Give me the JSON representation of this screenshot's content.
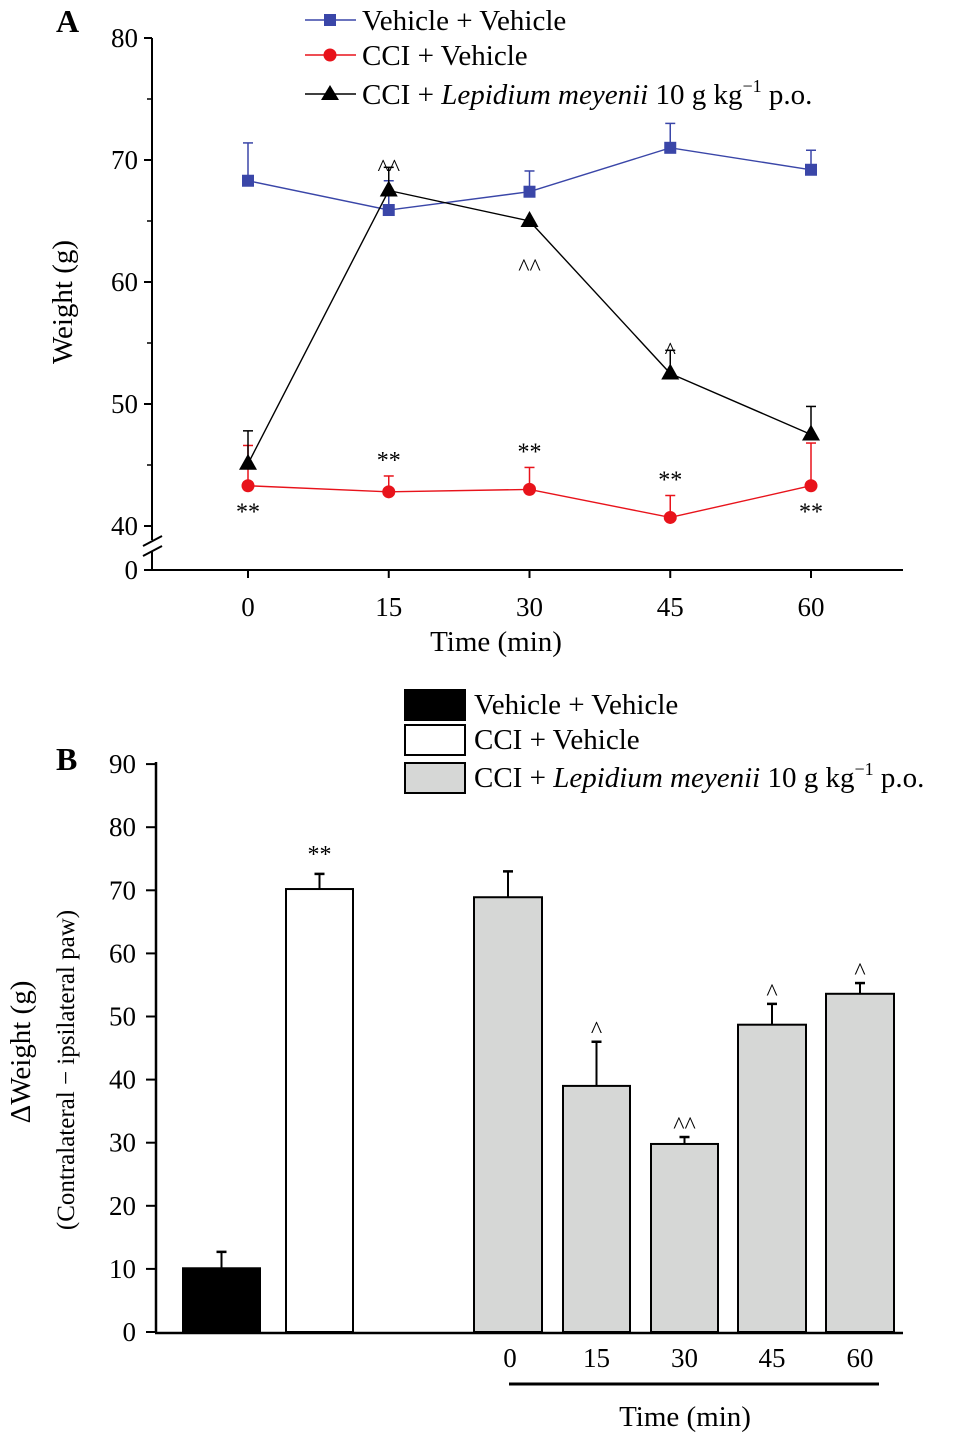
{
  "chart_data": [
    {
      "panel": "A",
      "type": "line",
      "xlabel": "Time (min)",
      "ylabel": "Weight (g)",
      "x": [
        0,
        15,
        30,
        45,
        60
      ],
      "xticks": [
        "0",
        "15",
        "30",
        "45",
        "60"
      ],
      "yticks": [
        "0",
        "40",
        "50",
        "60",
        "70",
        "80"
      ],
      "ylim": [
        40,
        80
      ],
      "y_axis_break": "0 to 40",
      "grid": false,
      "legend_position": "top",
      "series": [
        {
          "name": "Vehicle + Vehicle",
          "marker": "square",
          "color": "#3a46a8",
          "values": [
            68.3,
            65.9,
            67.4,
            71.0,
            69.2
          ],
          "error_upper": [
            71.4,
            68.3,
            69.1,
            73.0,
            70.8
          ]
        },
        {
          "name": "CCI + Vehicle",
          "marker": "circle",
          "color": "#e8131b",
          "values": [
            43.3,
            42.8,
            43.0,
            40.7,
            43.3
          ],
          "error_upper": [
            46.6,
            44.1,
            44.8,
            42.5,
            46.8
          ]
        },
        {
          "name": "CCI + Lepidium meyenii 10 g kg−1 p.o.",
          "marker": "triangle",
          "color": "#000000",
          "name_parts": [
            "CCI + ",
            "Lepidium meyenii",
            " 10 g kg",
            "−1",
            " p.o."
          ],
          "values": [
            45.1,
            67.5,
            65.0,
            52.5,
            47.5
          ],
          "error_upper": [
            47.8,
            69.4,
            null,
            54.4,
            49.8
          ]
        }
      ],
      "annotations": [
        {
          "text": "^^",
          "x": 15,
          "series": 2,
          "side": "above"
        },
        {
          "text": "^^",
          "x": 30,
          "series": 2,
          "side": "below"
        },
        {
          "text": "^",
          "x": 45,
          "series": 2,
          "side": "above"
        },
        {
          "text": "**",
          "x": 0,
          "series": 1,
          "side": "below"
        },
        {
          "text": "**",
          "x": 15,
          "series": 1,
          "side": "above"
        },
        {
          "text": "**",
          "x": 30,
          "series": 1,
          "side": "above"
        },
        {
          "text": "**",
          "x": 45,
          "series": 1,
          "side": "above"
        },
        {
          "text": "**",
          "x": 60,
          "series": 1,
          "side": "below"
        }
      ]
    },
    {
      "panel": "B",
      "type": "bar",
      "xlabel": "Time (min)",
      "ylabel": "ΔWeight (g)",
      "ylabel2": "(Contralateral − ipsilateral paw)",
      "ylim": [
        0,
        90
      ],
      "yticks": [
        "0",
        "10",
        "20",
        "30",
        "40",
        "50",
        "60",
        "70",
        "80",
        "90"
      ],
      "grid": false,
      "legend_position": "top-right",
      "legend": [
        {
          "name": "Vehicle + Vehicle",
          "color": "#000000"
        },
        {
          "name": "CCI + Vehicle",
          "color": "#ffffff"
        },
        {
          "name": "CCI + Lepidium meyenii 10 g kg−1 p.o.",
          "color": "#d6d7d6",
          "name_parts": [
            "CCI + ",
            "Lepidium meyenii",
            " 10 g kg",
            "−1",
            " p.o."
          ]
        }
      ],
      "bars": [
        {
          "group": "Vehicle + Vehicle",
          "label": "",
          "value": 10.1,
          "error_upper": 12.7,
          "annotation": ""
        },
        {
          "group": "CCI + Vehicle",
          "label": "",
          "value": 70.2,
          "error_upper": 72.6,
          "annotation": "**"
        },
        {
          "group": "CCI + Lepidium meyenii",
          "label": "0",
          "value": 68.9,
          "error_upper": 73.0,
          "annotation": ""
        },
        {
          "group": "CCI + Lepidium meyenii",
          "label": "15",
          "value": 39.0,
          "error_upper": 46.0,
          "annotation": "^"
        },
        {
          "group": "CCI + Lepidium meyenii",
          "label": "30",
          "value": 29.8,
          "error_upper": 30.9,
          "annotation": "^^"
        },
        {
          "group": "CCI + Lepidium meyenii",
          "label": "45",
          "value": 48.7,
          "error_upper": 52.0,
          "annotation": "^"
        },
        {
          "group": "CCI + Lepidium meyenii",
          "label": "60",
          "value": 53.6,
          "error_upper": 55.3,
          "annotation": "^"
        }
      ]
    }
  ]
}
